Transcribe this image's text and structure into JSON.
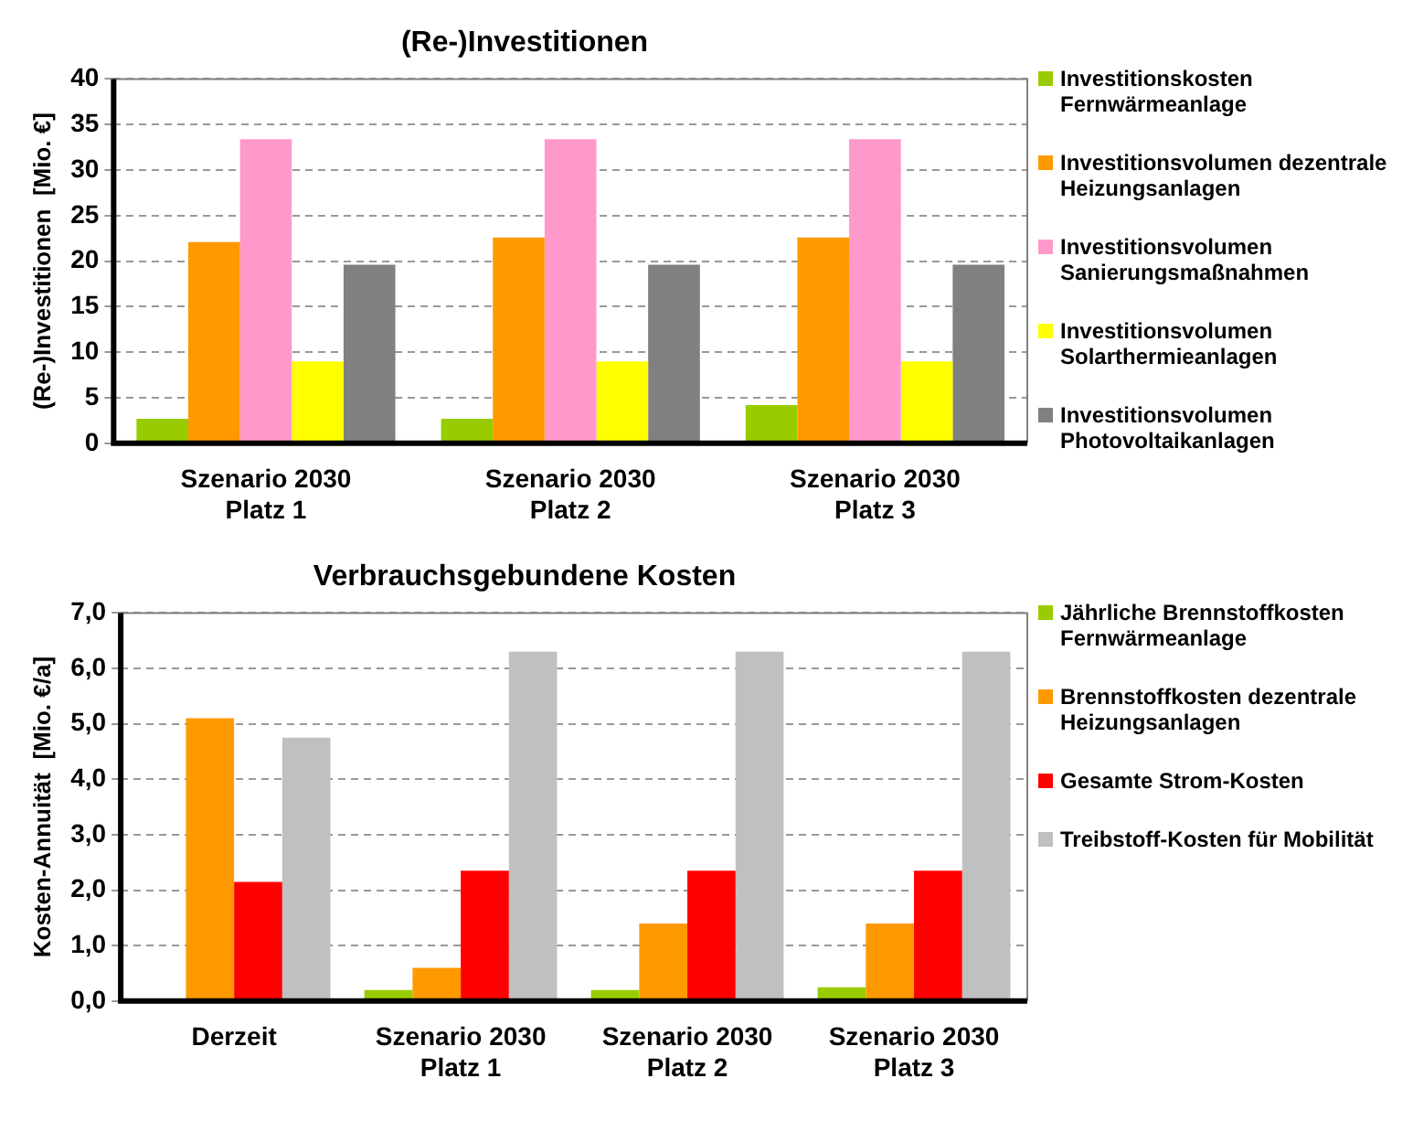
{
  "chart_data": [
    {
      "type": "bar",
      "title": "(Re-)Investitionen",
      "ylabel": "(Re-)Investitionen  [Mio. €]",
      "categories": [
        "Szenario 2030 Platz 1",
        "Szenario 2030 Platz 2",
        "Szenario 2030 Platz 3"
      ],
      "series": [
        {
          "name": "Investitionskosten Fernwärmeanlage",
          "color": "#99cc00",
          "values": [
            2.7,
            2.7,
            4.2
          ]
        },
        {
          "name": "Investitionsvolumen dezentrale Heizungsanlagen",
          "color": "#ff9900",
          "values": [
            22.1,
            22.6,
            22.6
          ]
        },
        {
          "name": "Investitionsvolumen Sanierungsmaßnahmen",
          "color": "#ff99cc",
          "values": [
            33.4,
            33.4,
            33.4
          ]
        },
        {
          "name": "Investitionsvolumen Solarthermieanlagen",
          "color": "#ffff00",
          "values": [
            9.0,
            9.0,
            9.0
          ]
        },
        {
          "name": "Investitionsvolumen Photovoltaikanlagen",
          "color": "#808080",
          "values": [
            19.6,
            19.6,
            19.6
          ]
        }
      ],
      "ylim": [
        0,
        40
      ],
      "yticks": [
        0,
        5,
        10,
        15,
        20,
        25,
        30,
        35,
        40
      ],
      "grid": "y",
      "legend": "right"
    },
    {
      "type": "bar",
      "title": "Verbrauchsgebundene Kosten",
      "ylabel": "Kosten-Annuität  [Mio. €/a]",
      "categories": [
        "Derzeit",
        "Szenario 2030 Platz 1",
        "Szenario 2030 Platz 2",
        "Szenario 2030 Platz 3"
      ],
      "series": [
        {
          "name": "Jährliche Brennstoffkosten Fernwärmeanlage",
          "color": "#99cc00",
          "values": [
            null,
            0.2,
            0.2,
            0.25
          ]
        },
        {
          "name": "Brennstoffkosten dezentrale Heizungsanlagen",
          "color": "#ff9900",
          "values": [
            5.1,
            0.6,
            1.4,
            1.4
          ]
        },
        {
          "name": "Gesamte Strom-Kosten",
          "color": "#ff0000",
          "values": [
            2.15,
            2.35,
            2.35,
            2.35
          ]
        },
        {
          "name": "Treibstoff-Kosten für Mobilität",
          "color": "#c0c0c0",
          "values": [
            4.75,
            6.3,
            6.3,
            6.3
          ]
        }
      ],
      "ylim": [
        0,
        7
      ],
      "yticks": [
        {
          "value": 0,
          "label": "0,0"
        },
        {
          "value": 1,
          "label": "1,0"
        },
        {
          "value": 2,
          "label": "2,0"
        },
        {
          "value": 3,
          "label": "3,0"
        },
        {
          "value": 4,
          "label": "4,0"
        },
        {
          "value": 5,
          "label": "5,0"
        },
        {
          "value": 6,
          "label": "6,0"
        },
        {
          "value": 7,
          "label": "7,0"
        }
      ],
      "grid": "y",
      "legend": "right"
    }
  ]
}
